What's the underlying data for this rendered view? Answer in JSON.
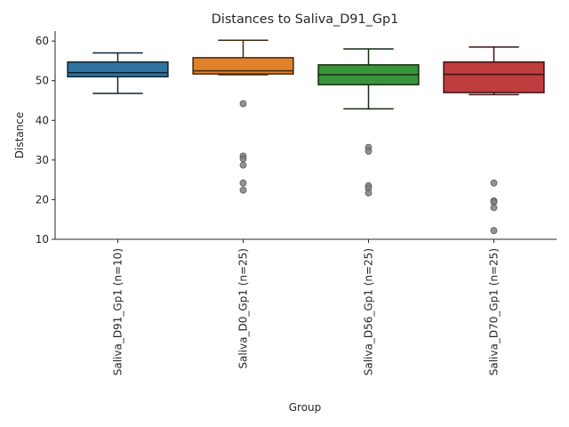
{
  "chart_data": {
    "type": "box",
    "title": "Distances to Saliva_D91_Gp1",
    "xlabel": "Group",
    "ylabel": "Distance",
    "ylim": [
      10,
      62.5
    ],
    "yticks": [
      10,
      20,
      30,
      40,
      50,
      60
    ],
    "grid": false,
    "categories": [
      "Saliva_D91_Gp1 (n=10)",
      "Saliva_D0_Gp1 (n=25)",
      "Saliva_D56_Gp1 (n=25)",
      "Saliva_D70_Gp1 (n=25)"
    ],
    "colors": [
      "#3274a1",
      "#e1812c",
      "#3a923a",
      "#c03d3e"
    ],
    "boxes": [
      {
        "whisker_low": 46.8,
        "q1": 51.0,
        "median": 52.0,
        "q3": 54.7,
        "whisker_high": 57.0,
        "outliers": []
      },
      {
        "whisker_low": 51.5,
        "q1": 51.7,
        "median": 52.5,
        "q3": 55.8,
        "whisker_high": 60.2,
        "outliers": [
          44.2,
          31.0,
          30.3,
          28.7,
          24.2,
          22.4
        ]
      },
      {
        "whisker_low": 42.9,
        "q1": 49.0,
        "median": 51.5,
        "q3": 54.0,
        "whisker_high": 58.0,
        "outliers": [
          33.2,
          32.2,
          23.5,
          22.9,
          21.7
        ]
      },
      {
        "whisker_low": 46.5,
        "q1": 47.0,
        "median": 51.6,
        "q3": 54.7,
        "whisker_high": 58.5,
        "outliers": [
          24.2,
          19.7,
          19.4,
          18.0,
          12.2
        ]
      }
    ]
  }
}
